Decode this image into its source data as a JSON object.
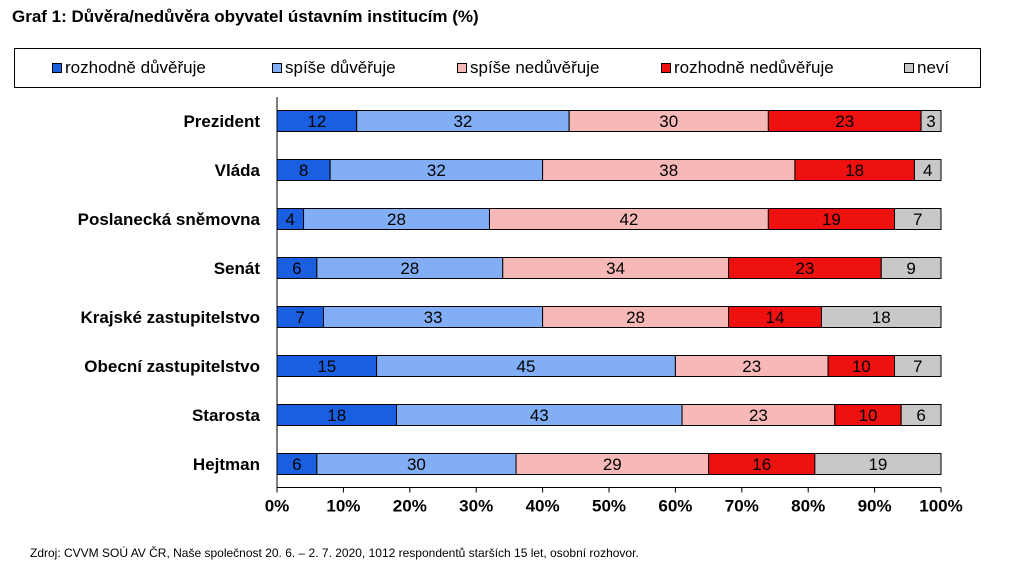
{
  "title": "Graf 1: Důvěra/nedůvěra obyvatel ústavním institucím (%)",
  "source": "Zdroj: CVVM SOÚ AV ČR, Naše společnost 20. 6. – 2. 7. 2020, 1012 respondentů starších 15 let, osobní rozhovor.",
  "chart_data": {
    "type": "bar",
    "orientation": "horizontal",
    "stacked": "percent",
    "categories": [
      "Prezident",
      "Vláda",
      "Poslanecká sněmovna",
      "Senát",
      "Krajské zastupitelstvo",
      "Obecní zastupitelstvo",
      "Starosta",
      "Hejtman"
    ],
    "series": [
      {
        "name": "rozhodně důvěřuje",
        "color": "#1a5fe0",
        "values": [
          12,
          8,
          4,
          6,
          7,
          15,
          18,
          6
        ]
      },
      {
        "name": "spíše důvěřuje",
        "color": "#82aef5",
        "values": [
          32,
          32,
          28,
          28,
          33,
          45,
          43,
          30
        ]
      },
      {
        "name": "spíše nedůvěřuje",
        "color": "#f7b8b8",
        "values": [
          30,
          38,
          42,
          34,
          28,
          23,
          23,
          29
        ]
      },
      {
        "name": "rozhodně nedůvěřuje",
        "color": "#ef1010",
        "values": [
          23,
          18,
          19,
          23,
          14,
          10,
          10,
          16
        ]
      },
      {
        "name": "neví",
        "color": "#c8c8c8",
        "values": [
          3,
          4,
          7,
          9,
          18,
          7,
          6,
          19
        ]
      }
    ],
    "xlim": [
      0,
      100
    ],
    "xticks": [
      "0%",
      "10%",
      "20%",
      "30%",
      "40%",
      "50%",
      "60%",
      "70%",
      "80%",
      "90%",
      "100%"
    ],
    "legend_position": "top",
    "grid": false
  }
}
